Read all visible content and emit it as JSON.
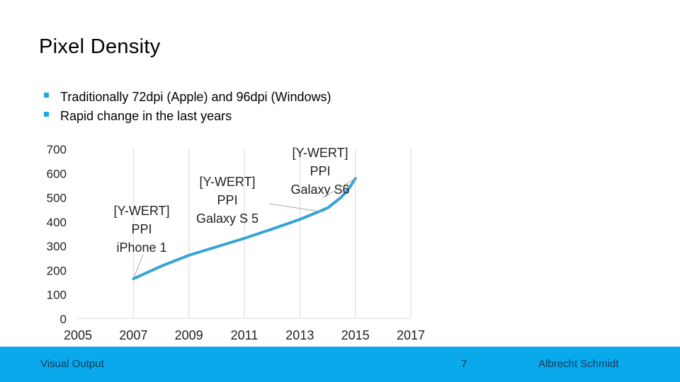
{
  "slide": {
    "title": "Pixel Density",
    "bullets": [
      "Traditionally 72dpi (Apple) and 96dpi (Windows)",
      "Rapid change in the last years"
    ]
  },
  "footer": {
    "left": "Visual Output",
    "page": "7",
    "author": "Albrecht Schmidt"
  },
  "colors": {
    "accent": "#1ea7e1",
    "line": "#35a4d3",
    "footer": "#0aa9eb",
    "grid": "#d9d9d9"
  },
  "chart_data": {
    "type": "line",
    "title": "",
    "xlabel": "",
    "ylabel": "",
    "xlim": [
      2005,
      2017
    ],
    "ylim": [
      0,
      700
    ],
    "x_ticks": [
      2005,
      2007,
      2009,
      2011,
      2013,
      2015,
      2017
    ],
    "y_ticks": [
      0,
      100,
      200,
      300,
      400,
      500,
      600,
      700
    ],
    "grid": "vertical",
    "series": [
      {
        "x": [
          2007,
          2008,
          2009,
          2010,
          2011,
          2012,
          2013,
          2014,
          2014.5,
          2014.8,
          2015
        ],
        "y": [
          163,
          215,
          260,
          295,
          330,
          368,
          408,
          455,
          500,
          540,
          577
        ]
      }
    ],
    "annotations": [
      {
        "text": [
          "[Y-WERT]",
          "PPI",
          "iPhone 1"
        ],
        "x": 2007,
        "y": 163
      },
      {
        "text": [
          "[Y-WERT]",
          "PPI",
          "Galaxy S 5"
        ],
        "x": 2013,
        "y": 415
      },
      {
        "text": [
          "[Y-WERT]",
          "PPI",
          "Galaxy S6"
        ],
        "x": 2015,
        "y": 577
      }
    ]
  }
}
